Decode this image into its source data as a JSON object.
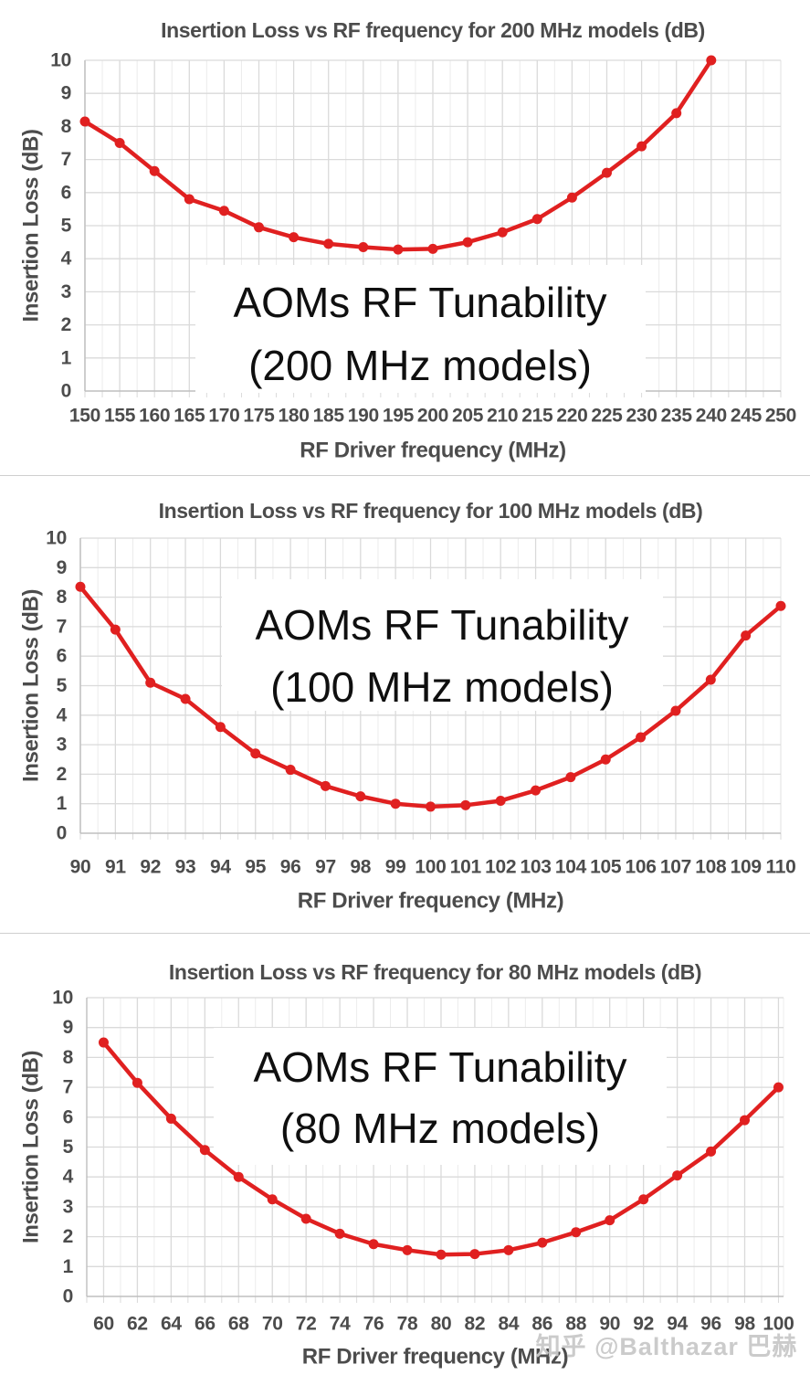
{
  "watermark": "知乎 @Balthazar 巴赫",
  "colors": {
    "line": "#e02020",
    "label_text": "#4c4c4c",
    "grid_major": "#dadada",
    "grid_minor": "#ececec",
    "axis": "#bfbfbf",
    "annotation_text": "#0f0f0f",
    "background": "#ffffff",
    "watermark_text": "#c9c9c9"
  },
  "chart_data": [
    {
      "type": "line",
      "title": "Insertion Loss vs RF frequency for 200 MHz models (dB)",
      "xlabel": "RF Driver frequency (MHz)",
      "ylabel": "Insertion Loss (dB)",
      "annotation": [
        "AOMs RF Tunability",
        "(200 MHz models)"
      ],
      "x": [
        150,
        155,
        160,
        165,
        170,
        175,
        180,
        185,
        190,
        195,
        200,
        205,
        210,
        215,
        220,
        225,
        230,
        235,
        240
      ],
      "y": [
        8.15,
        7.5,
        6.65,
        5.8,
        5.45,
        4.95,
        4.65,
        4.45,
        4.35,
        4.28,
        4.3,
        4.5,
        4.8,
        5.2,
        5.85,
        6.6,
        7.4,
        8.4,
        10.0
      ],
      "xticks": [
        150,
        155,
        160,
        165,
        170,
        175,
        180,
        185,
        190,
        195,
        200,
        205,
        210,
        215,
        220,
        225,
        230,
        235,
        240,
        245,
        250
      ],
      "yticks": [
        0,
        1,
        2,
        3,
        4,
        5,
        6,
        7,
        8,
        9,
        10
      ],
      "xlim": [
        150,
        250
      ],
      "ylim": [
        0,
        10
      ],
      "grid": true,
      "legend": "none",
      "line_color": "#e02020"
    },
    {
      "type": "line",
      "title": "Insertion Loss vs RF frequency for 100 MHz models (dB)",
      "xlabel": "RF Driver frequency (MHz)",
      "ylabel": "Insertion Loss (dB)",
      "annotation": [
        "AOMs RF Tunability",
        "(100 MHz models)"
      ],
      "x": [
        90,
        91,
        92,
        93,
        94,
        95,
        96,
        97,
        98,
        99,
        100,
        101,
        102,
        103,
        104,
        105,
        106,
        107,
        108,
        109,
        110
      ],
      "y": [
        8.35,
        6.9,
        5.1,
        4.55,
        3.6,
        2.7,
        2.15,
        1.6,
        1.25,
        1.0,
        0.9,
        0.95,
        1.1,
        1.45,
        1.9,
        2.5,
        3.25,
        4.15,
        5.2,
        6.7,
        7.7
      ],
      "xticks": [
        90,
        91,
        92,
        93,
        94,
        95,
        96,
        97,
        98,
        99,
        100,
        101,
        102,
        103,
        104,
        105,
        106,
        107,
        108,
        109,
        110
      ],
      "yticks": [
        0,
        1,
        2,
        3,
        4,
        5,
        6,
        7,
        8,
        9,
        10
      ],
      "xlim": [
        90,
        110
      ],
      "ylim": [
        0,
        10
      ],
      "grid": true,
      "legend": "none",
      "line_color": "#e02020"
    },
    {
      "type": "line",
      "title": "Insertion Loss vs RF frequency for 80 MHz models (dB)",
      "xlabel": "RF Driver frequency (MHz)",
      "ylabel": "Insertion Loss (dB)",
      "annotation": [
        "AOMs RF Tunability",
        "(80 MHz models)"
      ],
      "x": [
        60,
        62,
        64,
        66,
        68,
        70,
        72,
        74,
        76,
        78,
        80,
        82,
        84,
        86,
        88,
        90,
        92,
        94,
        96,
        98,
        100
      ],
      "y": [
        8.5,
        7.15,
        5.95,
        4.9,
        4.0,
        3.25,
        2.6,
        2.1,
        1.75,
        1.55,
        1.4,
        1.42,
        1.55,
        1.8,
        2.15,
        2.55,
        3.25,
        4.05,
        4.85,
        5.9,
        7.0
      ],
      "xticks": [
        60,
        62,
        64,
        66,
        68,
        70,
        72,
        74,
        76,
        78,
        80,
        82,
        84,
        86,
        88,
        90,
        92,
        94,
        96,
        98,
        100
      ],
      "yticks": [
        0,
        1,
        2,
        3,
        4,
        5,
        6,
        7,
        8,
        9,
        10
      ],
      "xlim": [
        59,
        100.3
      ],
      "ylim": [
        0,
        10
      ],
      "grid": true,
      "legend": "none",
      "line_color": "#e02020"
    }
  ]
}
